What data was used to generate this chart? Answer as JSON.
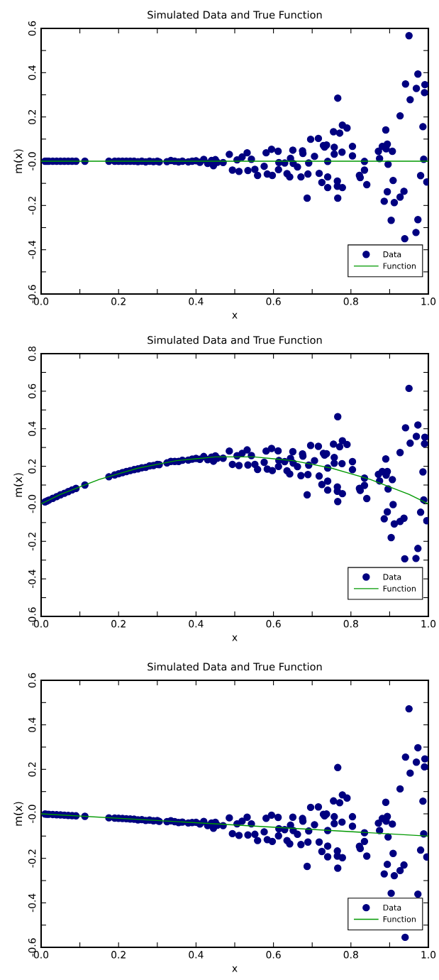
{
  "chart_data": [
    {
      "type": "scatter",
      "title": "Simulated Data and True Function",
      "xlabel": "x",
      "ylabel": "m(x)",
      "legend": "lower right",
      "grid": false,
      "xlim": [
        0,
        1
      ],
      "xticks": [
        {
          "value": 0,
          "label": "0.0"
        },
        {
          "value": 0.1,
          "label": null
        },
        {
          "value": 0.2,
          "label": "0.2"
        },
        {
          "value": 0.3,
          "label": null
        },
        {
          "value": 0.4,
          "label": "0.4"
        },
        {
          "value": 0.5,
          "label": null
        },
        {
          "value": 0.6,
          "label": "0.6"
        },
        {
          "value": 0.7,
          "label": null
        },
        {
          "value": 0.8,
          "label": "0.8"
        },
        {
          "value": 0.9,
          "label": null
        },
        {
          "value": 1,
          "label": "1.0"
        }
      ],
      "ylim": [
        -0.6,
        0.6
      ],
      "yticks": [
        {
          "value": -0.6,
          "label": "-0.6"
        },
        {
          "value": -0.5,
          "label": null
        },
        {
          "value": -0.4,
          "label": "-0.4"
        },
        {
          "value": -0.3,
          "label": null
        },
        {
          "value": -0.2,
          "label": "-0.2"
        },
        {
          "value": -0.1,
          "label": null
        },
        {
          "value": 0,
          "label": "-0.0"
        },
        {
          "value": 0.1,
          "label": null
        },
        {
          "value": 0.2,
          "label": "0.2"
        },
        {
          "value": 0.3,
          "label": null
        },
        {
          "value": 0.4,
          "label": "0.4"
        },
        {
          "value": 0.5,
          "label": null
        },
        {
          "value": 0.6,
          "label": "0.6"
        }
      ],
      "x": [
        0.01,
        0.015,
        0.02,
        0.03,
        0.04,
        0.05,
        0.06,
        0.07,
        0.08,
        0.09,
        0.113,
        0.175,
        0.19,
        0.2,
        0.21,
        0.22,
        0.23,
        0.24,
        0.25,
        0.26,
        0.27,
        0.28,
        0.29,
        0.3,
        0.305,
        0.325,
        0.335,
        0.345,
        0.355,
        0.365,
        0.38,
        0.39,
        0.4,
        0.41,
        0.42,
        0.43,
        0.44,
        0.445,
        0.45,
        0.455,
        0.47,
        0.486,
        0.494,
        0.506,
        0.511,
        0.519,
        0.532,
        0.534,
        0.543,
        0.552,
        0.559,
        0.576,
        0.581,
        0.584,
        0.595,
        0.597,
        0.612,
        0.613,
        0.614,
        0.629,
        0.635,
        0.642,
        0.644,
        0.65,
        0.651,
        0.662,
        0.671,
        0.675,
        0.676,
        0.687,
        0.689,
        0.691,
        0.696,
        0.706,
        0.716,
        0.718,
        0.725,
        0.729,
        0.732,
        0.737,
        0.74,
        0.74,
        0.74,
        0.755,
        0.757,
        0.757,
        0.765,
        0.765,
        0.766,
        0.766,
        0.771,
        0.777,
        0.778,
        0.778,
        0.79,
        0.804,
        0.804,
        0.822,
        0.824,
        0.835,
        0.835,
        0.841,
        0.871,
        0.874,
        0.881,
        0.886,
        0.89,
        0.891,
        0.894,
        0.894,
        0.896,
        0.904,
        0.907,
        0.909,
        0.912,
        0.927,
        0.927,
        0.937,
        0.939,
        0.94,
        0.941,
        0.95,
        0.953,
        0.968,
        0.969,
        0.973,
        0.973,
        0.98,
        0.986,
        0.988,
        0.99,
        0.991,
        0.996
      ],
      "series": [
        {
          "name": "Data",
          "marker": "circle",
          "color": "#000080",
          "values": [
            0,
            0,
            0,
            0,
            0,
            0,
            0,
            0,
            0,
            0,
            0,
            0,
            0,
            0,
            0,
            0,
            0,
            0,
            -0.002,
            0,
            -0.003,
            0,
            -0.002,
            0,
            -0.003,
            -0.002,
            0.003,
            0,
            -0.003,
            0,
            -0.003,
            0,
            0.002,
            -0.005,
            0.008,
            -0.01,
            0.003,
            -0.02,
            0.007,
            -0.005,
            -0.006,
            0.031,
            -0.04,
            0.006,
            -0.046,
            0.019,
            0.038,
            -0.042,
            0.009,
            -0.037,
            -0.064,
            -0.023,
            0.038,
            -0.058,
            0.054,
            -0.064,
            0.045,
            -0.038,
            -0.006,
            -0.008,
            -0.056,
            -0.071,
            0.013,
            0.05,
            -0.01,
            -0.026,
            -0.071,
            0.047,
            0.035,
            -0.167,
            -0.058,
            -0.008,
            0.099,
            0.022,
            0.103,
            -0.055,
            -0.096,
            0.071,
            0.064,
            0.073,
            -0.001,
            -0.071,
            -0.119,
            0.133,
            0.063,
            0.032,
            -0.09,
            -0.113,
            0.285,
            -0.167,
            0.127,
            0.041,
            0.163,
            -0.119,
            0.15,
            0.067,
            0.024,
            -0.064,
            -0.074,
            -0.001,
            -0.04,
            -0.106,
            0.045,
            0.012,
            0.067,
            -0.181,
            0.141,
            0.056,
            0.077,
            -0.138,
            -0.014,
            -0.267,
            0.045,
            -0.087,
            -0.187,
            0.205,
            -0.162,
            -0.136,
            -0.35,
            null,
            0.349,
            0.567,
            0.278,
            -0.322,
            0.329,
            0.394,
            -0.264,
            -0.065,
            0.156,
            0.009,
            0.31,
            0.346,
            -0.094
          ]
        },
        {
          "name": "Function",
          "type": "line",
          "color": "#009900",
          "x": [
            0,
            0.1,
            0.2,
            0.3,
            0.4,
            0.5,
            0.6,
            0.7,
            0.8,
            0.9,
            1
          ],
          "values": [
            0,
            0,
            0,
            0,
            0,
            0,
            0,
            0,
            0,
            0,
            0
          ]
        }
      ]
    },
    {
      "type": "scatter",
      "title": "Simulated Data and True Function",
      "xlabel": "x",
      "ylabel": "m(x)",
      "legend": "lower right",
      "grid": false,
      "xlim": [
        0,
        1
      ],
      "xticks": [
        {
          "value": 0,
          "label": "0.0"
        },
        {
          "value": 0.1,
          "label": null
        },
        {
          "value": 0.2,
          "label": "0.2"
        },
        {
          "value": 0.3,
          "label": null
        },
        {
          "value": 0.4,
          "label": "0.4"
        },
        {
          "value": 0.5,
          "label": null
        },
        {
          "value": 0.6,
          "label": "0.6"
        },
        {
          "value": 0.7,
          "label": null
        },
        {
          "value": 0.8,
          "label": "0.8"
        },
        {
          "value": 0.9,
          "label": null
        },
        {
          "value": 1,
          "label": "1.0"
        }
      ],
      "ylim": [
        -0.6,
        0.8
      ],
      "yticks": [
        {
          "value": -0.6,
          "label": "-0.6"
        },
        {
          "value": -0.5,
          "label": null
        },
        {
          "value": -0.4,
          "label": "-0.4"
        },
        {
          "value": -0.3,
          "label": null
        },
        {
          "value": -0.2,
          "label": "-0.2"
        },
        {
          "value": -0.1,
          "label": null
        },
        {
          "value": 0,
          "label": "-0.0"
        },
        {
          "value": 0.1,
          "label": null
        },
        {
          "value": 0.2,
          "label": "0.2"
        },
        {
          "value": 0.3,
          "label": null
        },
        {
          "value": 0.4,
          "label": "0.4"
        },
        {
          "value": 0.5,
          "label": null
        },
        {
          "value": 0.6,
          "label": "0.6"
        },
        {
          "value": 0.7,
          "label": null
        },
        {
          "value": 0.8,
          "label": "0.8"
        }
      ],
      "x": [
        0.01,
        0.015,
        0.02,
        0.03,
        0.04,
        0.05,
        0.06,
        0.07,
        0.08,
        0.09,
        0.113,
        0.175,
        0.19,
        0.2,
        0.21,
        0.22,
        0.23,
        0.24,
        0.25,
        0.26,
        0.27,
        0.28,
        0.29,
        0.3,
        0.305,
        0.325,
        0.335,
        0.345,
        0.355,
        0.365,
        0.38,
        0.39,
        0.4,
        0.41,
        0.42,
        0.43,
        0.44,
        0.445,
        0.45,
        0.455,
        0.47,
        0.486,
        0.494,
        0.506,
        0.511,
        0.519,
        0.532,
        0.534,
        0.543,
        0.552,
        0.559,
        0.576,
        0.581,
        0.584,
        0.595,
        0.597,
        0.612,
        0.613,
        0.614,
        0.629,
        0.635,
        0.642,
        0.644,
        0.65,
        0.651,
        0.662,
        0.671,
        0.675,
        0.676,
        0.687,
        0.689,
        0.691,
        0.696,
        0.706,
        0.716,
        0.718,
        0.725,
        0.729,
        0.732,
        0.737,
        0.74,
        0.74,
        0.74,
        0.755,
        0.757,
        0.757,
        0.765,
        0.765,
        0.766,
        0.766,
        0.771,
        0.777,
        0.778,
        0.778,
        0.79,
        0.804,
        0.804,
        0.822,
        0.824,
        0.835,
        0.835,
        0.841,
        0.871,
        0.874,
        0.881,
        0.886,
        0.89,
        0.891,
        0.894,
        0.894,
        0.896,
        0.904,
        0.907,
        0.909,
        0.912,
        0.927,
        0.927,
        0.937,
        0.939,
        0.94,
        0.941,
        0.95,
        0.953,
        0.968,
        0.969,
        0.973,
        0.973,
        0.98,
        0.986,
        0.988,
        0.99,
        0.991,
        0.996
      ],
      "series": [
        {
          "name": "Data",
          "marker": "circle",
          "color": "#000080",
          "values": [
            0.01,
            0.015,
            0.02,
            0.029,
            0.038,
            0.048,
            0.056,
            0.065,
            0.074,
            0.082,
            0.1,
            0.144,
            0.154,
            0.16,
            0.166,
            0.172,
            0.177,
            0.182,
            0.186,
            0.192,
            0.194,
            0.202,
            0.204,
            0.21,
            0.209,
            0.218,
            0.226,
            0.226,
            0.226,
            0.232,
            0.233,
            0.238,
            0.242,
            0.237,
            0.252,
            0.235,
            0.249,
            0.227,
            0.255,
            0.243,
            0.243,
            0.281,
            0.21,
            0.256,
            0.204,
            0.269,
            0.287,
            0.207,
            0.257,
            0.21,
            0.183,
            0.221,
            0.281,
            0.185,
            0.295,
            0.177,
            0.282,
            0.199,
            0.231,
            0.225,
            0.176,
            0.159,
            0.242,
            0.278,
            0.217,
            0.198,
            0.15,
            0.266,
            0.254,
            0.048,
            0.156,
            0.206,
            0.311,
            0.23,
            0.306,
            0.148,
            0.103,
            0.269,
            0.26,
            0.267,
            0.191,
            0.121,
            0.073,
            0.318,
            0.247,
            0.216,
            0.09,
            0.067,
            0.464,
            0.012,
            0.304,
            0.214,
            0.336,
            0.054,
            0.316,
            0.225,
            0.182,
            0.082,
            0.071,
            0.137,
            0.098,
            0.028,
            0.157,
            0.122,
            0.172,
            -0.08,
            0.239,
            0.153,
            0.172,
            -0.043,
            0.079,
            -0.18,
            0.129,
            -0.004,
            -0.107,
            0.273,
            -0.094,
            -0.077,
            -0.293,
            null,
            0.405,
            0.615,
            0.323,
            -0.291,
            0.359,
            0.42,
            -0.238,
            -0.045,
            0.17,
            0.021,
            0.32,
            0.355,
            -0.09
          ]
        },
        {
          "name": "Function",
          "type": "line",
          "color": "#009900",
          "x": [
            0,
            0.05,
            0.1,
            0.15,
            0.2,
            0.25,
            0.3,
            0.35,
            0.4,
            0.45,
            0.5,
            0.55,
            0.6,
            0.65,
            0.7,
            0.75,
            0.8,
            0.85,
            0.9,
            0.95,
            1
          ],
          "values": [
            0,
            0.05,
            0.09,
            0.13,
            0.16,
            0.19,
            0.21,
            0.23,
            0.24,
            0.25,
            0.25,
            0.25,
            0.24,
            0.23,
            0.21,
            0.19,
            0.16,
            0.13,
            0.09,
            0.05,
            0
          ]
        }
      ]
    },
    {
      "type": "scatter",
      "title": "Simulated Data and True Function",
      "xlabel": "x",
      "ylabel": "m(x)",
      "legend": "lower right",
      "grid": false,
      "xlim": [
        0,
        1
      ],
      "xticks": [
        {
          "value": 0,
          "label": "0.0"
        },
        {
          "value": 0.1,
          "label": null
        },
        {
          "value": 0.2,
          "label": "0.2"
        },
        {
          "value": 0.3,
          "label": null
        },
        {
          "value": 0.4,
          "label": "0.4"
        },
        {
          "value": 0.5,
          "label": null
        },
        {
          "value": 0.6,
          "label": "0.6"
        },
        {
          "value": 0.7,
          "label": null
        },
        {
          "value": 0.8,
          "label": "0.8"
        },
        {
          "value": 0.9,
          "label": null
        },
        {
          "value": 1,
          "label": "1.0"
        }
      ],
      "ylim": [
        -0.6,
        0.6
      ],
      "yticks": [
        {
          "value": -0.6,
          "label": "-0.6"
        },
        {
          "value": -0.5,
          "label": null
        },
        {
          "value": -0.4,
          "label": "-0.4"
        },
        {
          "value": -0.3,
          "label": null
        },
        {
          "value": -0.2,
          "label": "-0.2"
        },
        {
          "value": -0.1,
          "label": null
        },
        {
          "value": 0,
          "label": "-0.0"
        },
        {
          "value": 0.1,
          "label": null
        },
        {
          "value": 0.2,
          "label": "0.2"
        },
        {
          "value": 0.3,
          "label": null
        },
        {
          "value": 0.4,
          "label": "0.4"
        },
        {
          "value": 0.5,
          "label": null
        },
        {
          "value": 0.6,
          "label": "0.6"
        }
      ],
      "x": [
        0.01,
        0.015,
        0.02,
        0.03,
        0.04,
        0.05,
        0.06,
        0.07,
        0.08,
        0.09,
        0.113,
        0.175,
        0.19,
        0.2,
        0.21,
        0.22,
        0.23,
        0.24,
        0.25,
        0.26,
        0.27,
        0.28,
        0.29,
        0.3,
        0.305,
        0.325,
        0.335,
        0.345,
        0.355,
        0.365,
        0.38,
        0.39,
        0.4,
        0.41,
        0.42,
        0.43,
        0.44,
        0.445,
        0.45,
        0.455,
        0.47,
        0.486,
        0.494,
        0.506,
        0.511,
        0.519,
        0.532,
        0.534,
        0.543,
        0.552,
        0.559,
        0.576,
        0.581,
        0.584,
        0.595,
        0.597,
        0.612,
        0.613,
        0.614,
        0.629,
        0.635,
        0.642,
        0.644,
        0.65,
        0.651,
        0.662,
        0.671,
        0.675,
        0.676,
        0.687,
        0.689,
        0.691,
        0.696,
        0.706,
        0.716,
        0.718,
        0.725,
        0.729,
        0.732,
        0.737,
        0.74,
        0.74,
        0.74,
        0.755,
        0.757,
        0.757,
        0.765,
        0.765,
        0.766,
        0.766,
        0.771,
        0.777,
        0.778,
        0.778,
        0.79,
        0.804,
        0.804,
        0.822,
        0.824,
        0.835,
        0.835,
        0.841,
        0.871,
        0.874,
        0.881,
        0.886,
        0.89,
        0.891,
        0.894,
        0.894,
        0.896,
        0.904,
        0.907,
        0.909,
        0.912,
        0.927,
        0.927,
        0.937,
        0.939,
        0.94,
        0.941,
        0.95,
        0.953,
        0.968,
        0.969,
        0.973,
        0.973,
        0.98,
        0.986,
        0.988,
        0.99,
        0.991,
        0.996
      ],
      "series": [
        {
          "name": "Data",
          "marker": "circle",
          "color": "#000080",
          "values": [
            -0.001,
            -0.002,
            -0.002,
            -0.003,
            -0.004,
            -0.005,
            -0.006,
            -0.007,
            -0.008,
            -0.009,
            -0.011,
            -0.018,
            -0.019,
            -0.02,
            -0.021,
            -0.022,
            -0.023,
            -0.024,
            -0.027,
            -0.026,
            -0.03,
            -0.028,
            -0.031,
            -0.03,
            -0.034,
            -0.035,
            -0.031,
            -0.035,
            -0.039,
            -0.037,
            -0.041,
            -0.039,
            -0.038,
            -0.046,
            -0.034,
            -0.053,
            -0.041,
            -0.065,
            -0.038,
            -0.051,
            -0.053,
            -0.018,
            -0.089,
            -0.045,
            -0.097,
            -0.033,
            -0.015,
            -0.095,
            -0.045,
            -0.092,
            -0.12,
            -0.081,
            -0.02,
            -0.116,
            -0.006,
            -0.124,
            -0.016,
            -0.099,
            -0.067,
            -0.071,
            -0.12,
            -0.135,
            -0.051,
            -0.015,
            -0.075,
            -0.092,
            -0.138,
            -0.021,
            -0.033,
            -0.236,
            -0.127,
            -0.077,
            0.029,
            -0.049,
            0.031,
            -0.127,
            -0.169,
            -0.002,
            -0.009,
            -0.001,
            -0.075,
            -0.145,
            -0.193,
            0.058,
            -0.013,
            -0.044,
            -0.167,
            -0.19,
            0.208,
            -0.244,
            0.05,
            -0.037,
            0.085,
            -0.197,
            0.071,
            -0.013,
            -0.056,
            -0.146,
            -0.156,
            -0.085,
            -0.124,
            -0.19,
            -0.042,
            -0.075,
            -0.021,
            -0.27,
            0.052,
            -0.033,
            -0.012,
            -0.227,
            -0.104,
            -0.357,
            -0.046,
            -0.178,
            -0.278,
            0.112,
            -0.255,
            -0.23,
            null,
            -0.555,
            0.255,
            0.472,
            0.183,
            null,
            0.232,
            0.297,
            -0.361,
            -0.163,
            0.057,
            -0.09,
            0.211,
            0.247,
            -0.194
          ]
        },
        {
          "name": "Function",
          "type": "line",
          "color": "#009900",
          "x": [
            0,
            1
          ],
          "values": [
            0,
            -0.1
          ]
        }
      ]
    }
  ]
}
